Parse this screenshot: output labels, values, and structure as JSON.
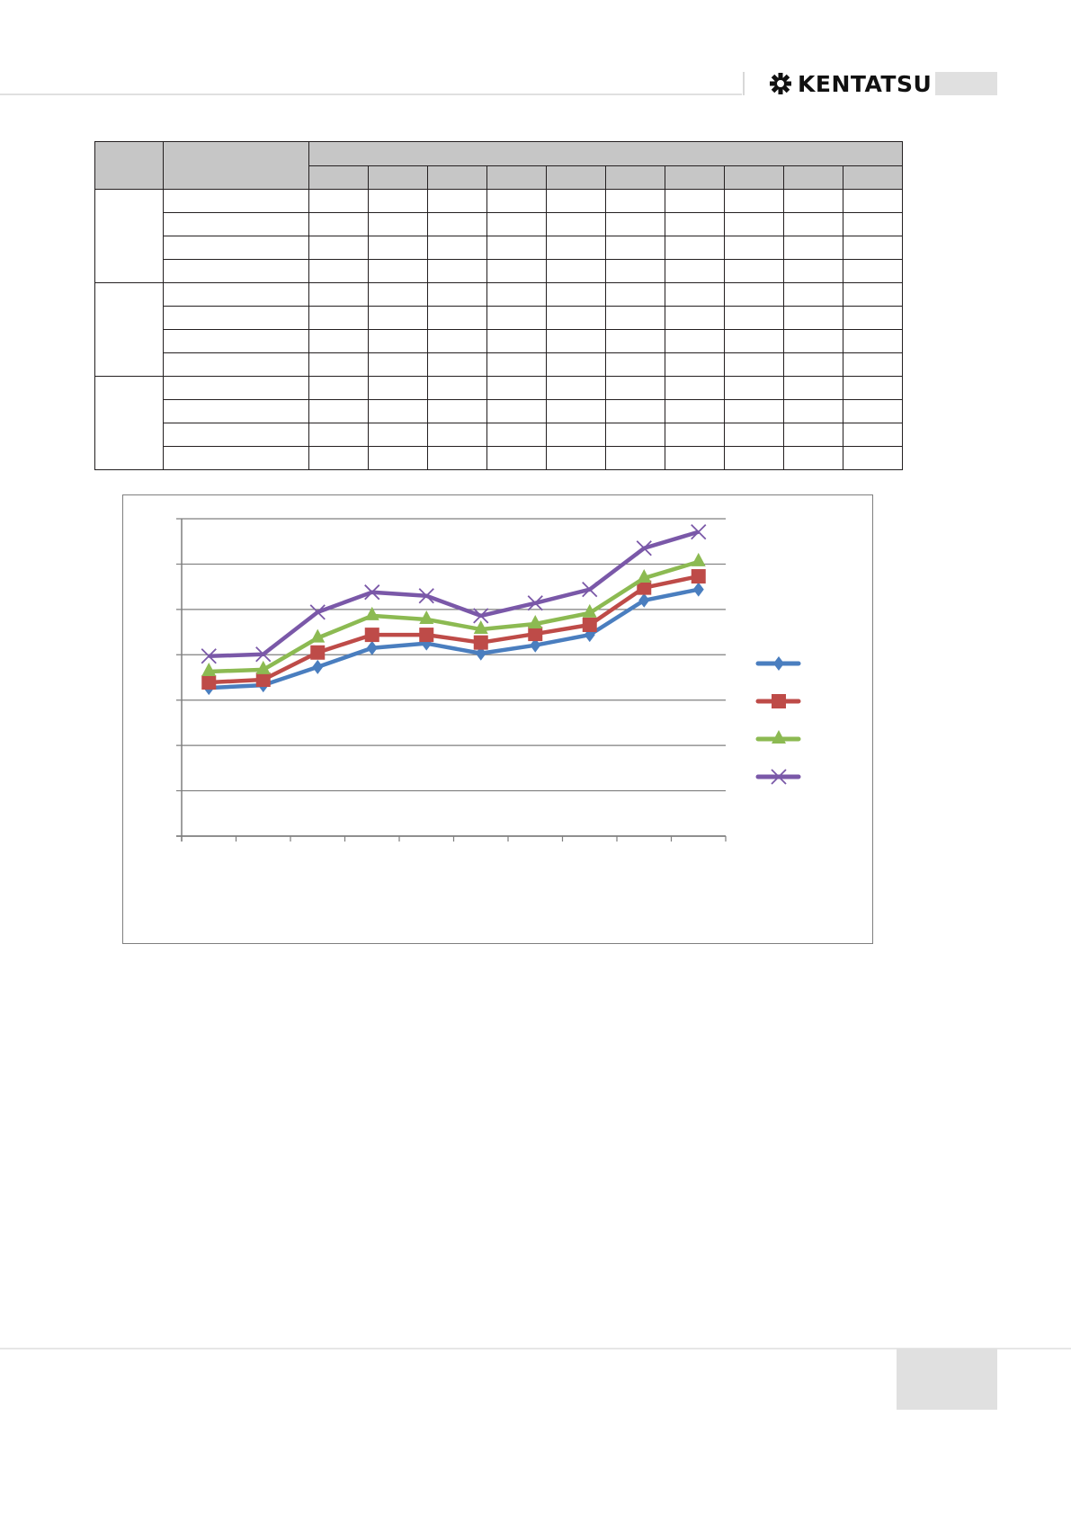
{
  "header": {
    "logo_text": "KENTATSU"
  },
  "table": {
    "group_count": 3,
    "rows_per_group": 4,
    "data_columns": 10
  },
  "chart_data": {
    "type": "line",
    "title": "",
    "xlabel": "",
    "ylabel": "",
    "categories": [
      "",
      "",
      "",
      "",
      "",
      "",
      "",
      "",
      "",
      ""
    ],
    "ylim": [
      0,
      7
    ],
    "y_gridlines": 7,
    "grid": true,
    "legend": "right",
    "series": [
      {
        "color": "#4a7ebf",
        "marker": "diamond",
        "values": [
          3.27,
          3.33,
          3.73,
          4.15,
          4.25,
          4.03,
          4.21,
          4.44,
          5.2,
          5.44
        ]
      },
      {
        "color": "#be4b48",
        "marker": "square",
        "values": [
          3.39,
          3.45,
          4.05,
          4.44,
          4.44,
          4.27,
          4.46,
          4.66,
          5.48,
          5.73
        ]
      },
      {
        "color": "#8cba52",
        "marker": "triangle",
        "values": [
          3.63,
          3.67,
          4.37,
          4.86,
          4.78,
          4.56,
          4.68,
          4.92,
          5.69,
          6.05
        ]
      },
      {
        "color": "#7a58a8",
        "marker": "x",
        "values": [
          3.97,
          4.01,
          4.94,
          5.38,
          5.3,
          4.86,
          5.14,
          5.44,
          6.35,
          6.71
        ]
      }
    ]
  }
}
